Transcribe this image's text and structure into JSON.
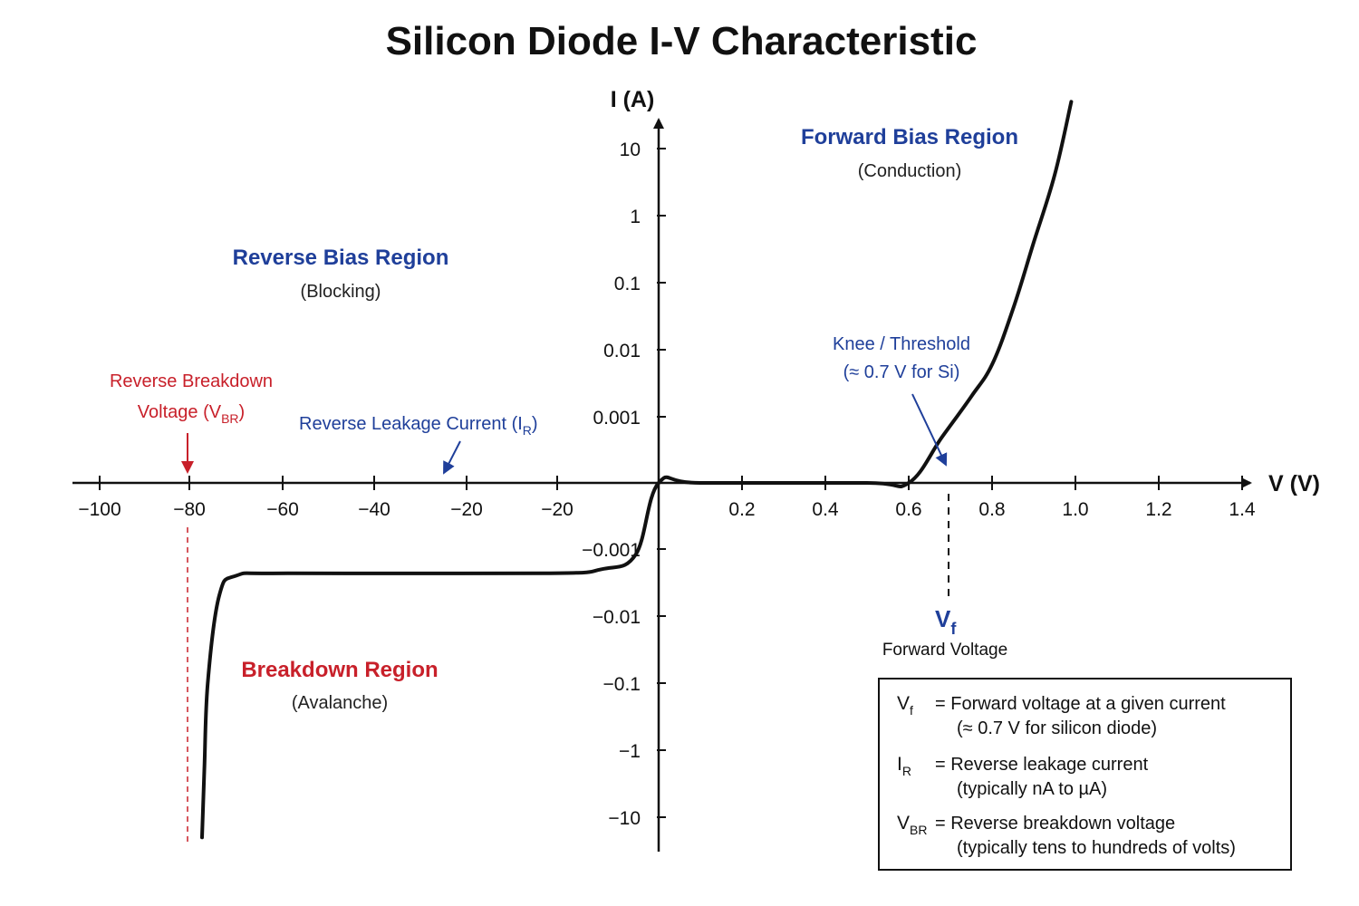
{
  "chart_data": {
    "type": "line",
    "title": "Silicon Diode I-V Characteristic",
    "xlabel": "V (V)",
    "ylabel": "I (A)",
    "x_axis": {
      "note": "split scale: reverse side in tens of volts, forward side in tenths of volts",
      "reverse_ticks": [
        "−100",
        "−80",
        "−60",
        "−40",
        "−20",
        "−20"
      ],
      "forward_ticks": [
        "0.2",
        "0.4",
        "0.6",
        "0.8",
        "1.0",
        "1.2",
        "1.4"
      ]
    },
    "y_axis": {
      "scale": "log (symmetric)",
      "positive_ticks": [
        "10",
        "1",
        "0.1",
        "0.01",
        "0.001"
      ],
      "negative_ticks": [
        "−0.001",
        "−0.01",
        "−0.1",
        "−1",
        "−10"
      ]
    },
    "series": [
      {
        "color": "#111111",
        "points": [
          {
            "x": -80,
            "y": -20
          },
          {
            "x": -79.6,
            "y": -2
          },
          {
            "x": -79,
            "y": -0.1
          },
          {
            "x": -77,
            "y": -0.005
          },
          {
            "x": -74,
            "y": -0.0025
          },
          {
            "x": -65,
            "y": -0.0023
          },
          {
            "x": -20,
            "y": -0.0023
          },
          {
            "x": -10,
            "y": -0.002
          },
          {
            "x": -4,
            "y": -0.0012
          },
          {
            "x": 0,
            "y": 0
          },
          {
            "x": 0.1,
            "y": 1e-05
          },
          {
            "x": 0.5,
            "y": 1e-05
          },
          {
            "x": 0.6,
            "y": 0.0001
          },
          {
            "x": 0.68,
            "y": 0.0005
          },
          {
            "x": 0.75,
            "y": 0.002
          },
          {
            "x": 0.8,
            "y": 0.006
          },
          {
            "x": 0.85,
            "y": 0.04
          },
          {
            "x": 0.9,
            "y": 0.4
          },
          {
            "x": 0.95,
            "y": 4
          },
          {
            "x": 0.99,
            "y": 50
          }
        ]
      }
    ],
    "regions": {
      "forward": {
        "title": "Forward Bias Region",
        "sub": "(Conduction)"
      },
      "reverse": {
        "title": "Reverse Bias Region",
        "sub": "(Blocking)"
      },
      "breakdown": {
        "title": "Breakdown Region",
        "sub": "(Avalanche)"
      }
    },
    "annotations": {
      "knee_line1": "Knee / Threshold",
      "knee_line2": "(≈ 0.7 V for Si)",
      "leakage_text": "Reverse Leakage Current (I",
      "leakage_sub": "R",
      "leakage_close": ")",
      "breakdown_line1": "Reverse Breakdown",
      "breakdown_line2": "Voltage (V",
      "breakdown_sub": "BR",
      "breakdown_close": ")",
      "vf_main": "V",
      "vf_sub": "f",
      "vf_caption": "Forward Voltage"
    },
    "legend": {
      "entries": [
        {
          "sym": "V",
          "sub": "f",
          "line1": "=  Forward voltage at a given current",
          "line2": "(≈ 0.7 V for silicon diode)"
        },
        {
          "sym": "I",
          "sub": "R",
          "line1": "=  Reverse leakage current",
          "line2": "(typically nA to µA)"
        },
        {
          "sym": "V",
          "sub": "BR",
          "line1": "=  Reverse breakdown voltage",
          "line2": "(typically tens to hundreds of volts)"
        }
      ]
    },
    "colors": {
      "curve": "#111111",
      "axis": "#111111",
      "blue": "#1f3f9a",
      "red": "#c8202a"
    }
  }
}
